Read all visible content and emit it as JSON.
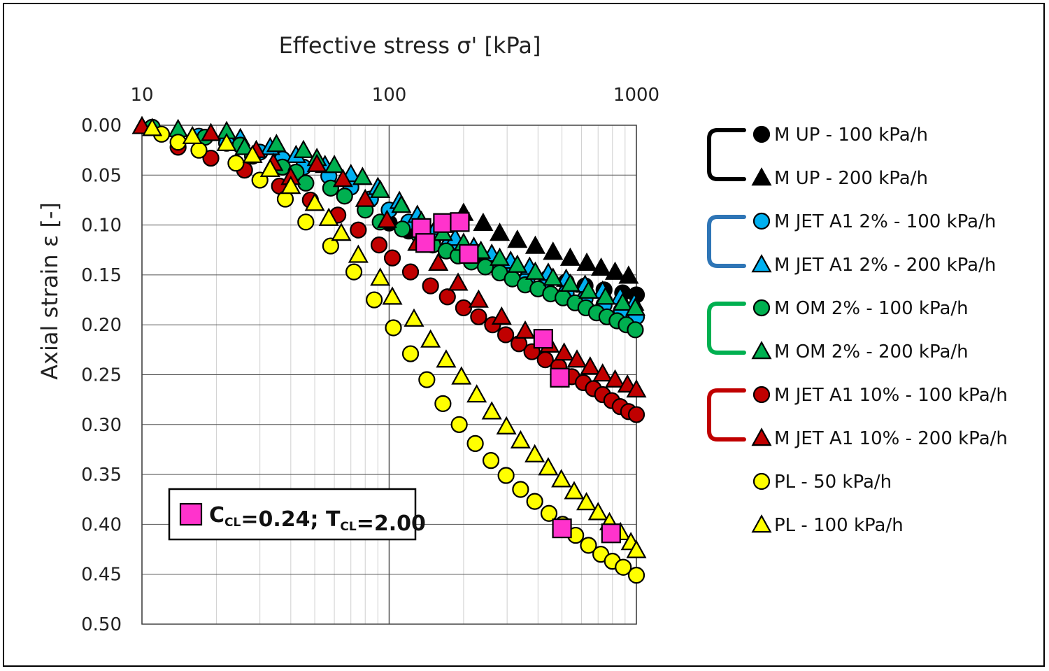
{
  "chart_data": {
    "type": "scatter",
    "title": "",
    "xlabel": "Effective stress σ' [kPa]",
    "ylabel": "Axial strain ε [-]",
    "x_scale": "log",
    "x_ticks": [
      "10",
      "100",
      "1000"
    ],
    "y_ticks": [
      "0.00",
      "0.05",
      "0.10",
      "0.15",
      "0.20",
      "0.25",
      "0.30",
      "0.35",
      "0.40",
      "0.45",
      "0.50"
    ],
    "xlim": [
      10,
      1000
    ],
    "ylim": [
      0,
      0.5
    ],
    "y_inverted": true,
    "x_axis_position": "top",
    "grid": true,
    "legend_position": "right",
    "series": [
      {
        "name": "M UP - 100 kPa/h",
        "marker": "circle",
        "color": "#000000",
        "points": [
          [
            100,
            0.098
          ],
          [
            120,
            0.106
          ],
          [
            150,
            0.116
          ],
          [
            180,
            0.124
          ],
          [
            220,
            0.132
          ],
          [
            260,
            0.138
          ],
          [
            310,
            0.144
          ],
          [
            370,
            0.149
          ],
          [
            440,
            0.153
          ],
          [
            520,
            0.157
          ],
          [
            620,
            0.161
          ],
          [
            740,
            0.165
          ],
          [
            880,
            0.168
          ],
          [
            1000,
            0.17
          ]
        ]
      },
      {
        "name": "M UP - 200 kPa/h",
        "marker": "triangle",
        "color": "#000000",
        "points": [
          [
            200,
            0.088
          ],
          [
            240,
            0.098
          ],
          [
            280,
            0.108
          ],
          [
            330,
            0.115
          ],
          [
            390,
            0.121
          ],
          [
            460,
            0.127
          ],
          [
            540,
            0.133
          ],
          [
            630,
            0.138
          ],
          [
            720,
            0.143
          ],
          [
            820,
            0.147
          ],
          [
            930,
            0.151
          ]
        ]
      },
      {
        "name": "M JET A1 2% - 100 kPa/h",
        "marker": "circle",
        "color": "#00B0F0",
        "points": [
          [
            17,
            0.011
          ],
          [
            22,
            0.018
          ],
          [
            30,
            0.027
          ],
          [
            37,
            0.034
          ],
          [
            45,
            0.042
          ],
          [
            57,
            0.051
          ],
          [
            70,
            0.062
          ],
          [
            84,
            0.074
          ],
          [
            100,
            0.085
          ],
          [
            120,
            0.097
          ],
          [
            145,
            0.109
          ],
          [
            175,
            0.121
          ],
          [
            210,
            0.131
          ],
          [
            250,
            0.14
          ],
          [
            300,
            0.148
          ],
          [
            360,
            0.155
          ],
          [
            430,
            0.161
          ],
          [
            520,
            0.168
          ],
          [
            620,
            0.174
          ],
          [
            740,
            0.18
          ],
          [
            870,
            0.186
          ],
          [
            1000,
            0.192
          ]
        ]
      },
      {
        "name": "M JET A1 2% - 200 kPa/h",
        "marker": "triangle",
        "color": "#00B0F0",
        "points": [
          [
            25,
            0.013
          ],
          [
            33,
            0.022
          ],
          [
            42,
            0.03
          ],
          [
            55,
            0.04
          ],
          [
            70,
            0.049
          ],
          [
            90,
            0.062
          ],
          [
            110,
            0.076
          ],
          [
            130,
            0.09
          ],
          [
            155,
            0.102
          ],
          [
            185,
            0.113
          ],
          [
            220,
            0.122
          ],
          [
            260,
            0.129
          ],
          [
            310,
            0.136
          ],
          [
            370,
            0.142
          ],
          [
            440,
            0.148
          ],
          [
            520,
            0.154
          ],
          [
            620,
            0.16
          ],
          [
            730,
            0.166
          ],
          [
            860,
            0.172
          ],
          [
            980,
            0.178
          ]
        ]
      },
      {
        "name": "M OM 2% - 100 kPa/h",
        "marker": "circle",
        "color": "#00B050",
        "points": [
          [
            11,
            0.002
          ],
          [
            18,
            0.012
          ],
          [
            25,
            0.02
          ],
          [
            28,
            0.031
          ],
          [
            37,
            0.042
          ],
          [
            42,
            0.047
          ],
          [
            46,
            0.058
          ],
          [
            58,
            0.063
          ],
          [
            66,
            0.071
          ],
          [
            80,
            0.085
          ],
          [
            92,
            0.097
          ],
          [
            113,
            0.104
          ],
          [
            132,
            0.11
          ],
          [
            150,
            0.12
          ],
          [
            170,
            0.126
          ],
          [
            190,
            0.131
          ],
          [
            215,
            0.137
          ],
          [
            245,
            0.142
          ],
          [
            280,
            0.148
          ],
          [
            315,
            0.154
          ],
          [
            355,
            0.16
          ],
          [
            400,
            0.164
          ],
          [
            450,
            0.169
          ],
          [
            505,
            0.173
          ],
          [
            565,
            0.178
          ],
          [
            625,
            0.183
          ],
          [
            690,
            0.188
          ],
          [
            760,
            0.192
          ],
          [
            835,
            0.196
          ],
          [
            910,
            0.2
          ],
          [
            990,
            0.205
          ]
        ]
      },
      {
        "name": "M OM 2% - 200 kPa/h",
        "marker": "triangle",
        "color": "#00B050",
        "points": [
          [
            14,
            0.004
          ],
          [
            22,
            0.006
          ],
          [
            26,
            0.022
          ],
          [
            35,
            0.019
          ],
          [
            45,
            0.025
          ],
          [
            51,
            0.033
          ],
          [
            60,
            0.04
          ],
          [
            78,
            0.052
          ],
          [
            92,
            0.065
          ],
          [
            112,
            0.08
          ],
          [
            135,
            0.096
          ],
          [
            165,
            0.108
          ],
          [
            200,
            0.118
          ],
          [
            235,
            0.126
          ],
          [
            280,
            0.133
          ],
          [
            330,
            0.14
          ],
          [
            390,
            0.147
          ],
          [
            460,
            0.153
          ],
          [
            540,
            0.159
          ],
          [
            640,
            0.166
          ],
          [
            750,
            0.172
          ],
          [
            880,
            0.178
          ],
          [
            990,
            0.183
          ]
        ]
      },
      {
        "name": "M JET A1 10% - 100 kPa/h",
        "marker": "circle",
        "color": "#C00000",
        "points": [
          [
            14,
            0.022
          ],
          [
            19,
            0.033
          ],
          [
            26,
            0.045
          ],
          [
            36,
            0.061
          ],
          [
            48,
            0.075
          ],
          [
            62,
            0.09
          ],
          [
            75,
            0.105
          ],
          [
            91,
            0.12
          ],
          [
            103,
            0.133
          ],
          [
            122,
            0.147
          ],
          [
            147,
            0.161
          ],
          [
            172,
            0.172
          ],
          [
            200,
            0.183
          ],
          [
            230,
            0.192
          ],
          [
            262,
            0.2
          ],
          [
            296,
            0.21
          ],
          [
            335,
            0.219
          ],
          [
            378,
            0.227
          ],
          [
            428,
            0.235
          ],
          [
            485,
            0.242
          ],
          [
            548,
            0.252
          ],
          [
            610,
            0.258
          ],
          [
            670,
            0.264
          ],
          [
            730,
            0.27
          ],
          [
            795,
            0.276
          ],
          [
            860,
            0.282
          ],
          [
            930,
            0.287
          ],
          [
            1000,
            0.29
          ]
        ]
      },
      {
        "name": "M JET A1 10% - 200 kPa/h",
        "marker": "triangle",
        "color": "#C00000",
        "points": [
          [
            10,
            0.001
          ],
          [
            19,
            0.008
          ],
          [
            29,
            0.025
          ],
          [
            34,
            0.038
          ],
          [
            40,
            0.052
          ],
          [
            51,
            0.039
          ],
          [
            65,
            0.054
          ],
          [
            80,
            0.074
          ],
          [
            98,
            0.095
          ],
          [
            130,
            0.118
          ],
          [
            158,
            0.138
          ],
          [
            190,
            0.158
          ],
          [
            230,
            0.175
          ],
          [
            285,
            0.192
          ],
          [
            355,
            0.206
          ],
          [
            445,
            0.22
          ],
          [
            510,
            0.228
          ],
          [
            575,
            0.235
          ],
          [
            650,
            0.242
          ],
          [
            730,
            0.249
          ],
          [
            820,
            0.255
          ],
          [
            920,
            0.26
          ],
          [
            1000,
            0.265
          ]
        ]
      },
      {
        "name": "PL - 50 kPa/h",
        "marker": "circle",
        "color": "#FFFF00",
        "points": [
          [
            12,
            0.009
          ],
          [
            14,
            0.017
          ],
          [
            17,
            0.025
          ],
          [
            24,
            0.038
          ],
          [
            30,
            0.055
          ],
          [
            38,
            0.074
          ],
          [
            46,
            0.097
          ],
          [
            58,
            0.121
          ],
          [
            72,
            0.147
          ],
          [
            87,
            0.175
          ],
          [
            104,
            0.203
          ],
          [
            122,
            0.229
          ],
          [
            142,
            0.255
          ],
          [
            165,
            0.279
          ],
          [
            192,
            0.3
          ],
          [
            223,
            0.319
          ],
          [
            258,
            0.336
          ],
          [
            297,
            0.351
          ],
          [
            340,
            0.365
          ],
          [
            388,
            0.377
          ],
          [
            443,
            0.389
          ],
          [
            503,
            0.4
          ],
          [
            568,
            0.411
          ],
          [
            640,
            0.421
          ],
          [
            718,
            0.43
          ],
          [
            800,
            0.437
          ],
          [
            885,
            0.443
          ],
          [
            1000,
            0.451
          ]
        ]
      },
      {
        "name": "PL - 100 kPa/h",
        "marker": "triangle",
        "color": "#FFFF00",
        "points": [
          [
            11,
            0.003
          ],
          [
            16,
            0.011
          ],
          [
            22,
            0.018
          ],
          [
            28,
            0.03
          ],
          [
            33,
            0.044
          ],
          [
            40,
            0.061
          ],
          [
            50,
            0.078
          ],
          [
            57,
            0.093
          ],
          [
            64,
            0.108
          ],
          [
            75,
            0.13
          ],
          [
            92,
            0.153
          ],
          [
            103,
            0.172
          ],
          [
            126,
            0.194
          ],
          [
            147,
            0.215
          ],
          [
            170,
            0.235
          ],
          [
            196,
            0.252
          ],
          [
            226,
            0.27
          ],
          [
            260,
            0.287
          ],
          [
            298,
            0.302
          ],
          [
            340,
            0.316
          ],
          [
            388,
            0.33
          ],
          [
            440,
            0.343
          ],
          [
            497,
            0.355
          ],
          [
            560,
            0.367
          ],
          [
            628,
            0.378
          ],
          [
            700,
            0.388
          ],
          [
            778,
            0.398
          ],
          [
            862,
            0.408
          ],
          [
            950,
            0.418
          ],
          [
            1000,
            0.426
          ]
        ]
      }
    ],
    "annotation": {
      "label_main": "C",
      "label_main_sub": "CL",
      "label_eq": "=0.24; T",
      "label_t_sub": "CL",
      "label_end": "=2.00",
      "marker": "square",
      "color": "#FF33CC",
      "points": [
        [
          135,
          0.103
        ],
        [
          140,
          0.118
        ],
        [
          165,
          0.098
        ],
        [
          193,
          0.097
        ],
        [
          210,
          0.129
        ],
        [
          420,
          0.214
        ],
        [
          490,
          0.253
        ],
        [
          500,
          0.404
        ],
        [
          790,
          0.409
        ]
      ]
    }
  }
}
